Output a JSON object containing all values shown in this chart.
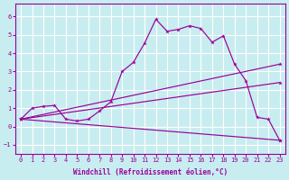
{
  "xlabel": "Windchill (Refroidissement éolien,°C)",
  "bg_color": "#c8edf0",
  "grid_color": "#ffffff",
  "line_color": "#990099",
  "xlim": [
    -0.5,
    23.5
  ],
  "ylim": [
    -1.5,
    6.7
  ],
  "xticks": [
    0,
    1,
    2,
    3,
    4,
    5,
    6,
    7,
    8,
    9,
    10,
    11,
    12,
    13,
    14,
    15,
    16,
    17,
    18,
    19,
    20,
    21,
    22,
    23
  ],
  "yticks": [
    -1,
    0,
    1,
    2,
    3,
    4,
    5,
    6
  ],
  "line1_x": [
    0,
    1,
    2,
    3,
    4,
    5,
    6,
    7,
    8,
    9,
    10,
    11,
    12,
    13,
    14,
    15,
    16,
    17,
    18,
    19,
    20,
    21,
    22,
    23
  ],
  "line1_y": [
    0.4,
    1.0,
    1.1,
    1.15,
    0.4,
    0.3,
    0.4,
    0.85,
    1.35,
    3.0,
    3.5,
    4.55,
    5.85,
    5.2,
    5.3,
    5.5,
    5.35,
    4.6,
    4.95,
    3.4,
    2.5,
    0.5,
    0.4,
    -0.75
  ],
  "line3_x": [
    0,
    23
  ],
  "line3_y": [
    0.4,
    3.4
  ],
  "line4_x": [
    0,
    23
  ],
  "line4_y": [
    0.4,
    2.4
  ],
  "line5_x": [
    0,
    23
  ],
  "line5_y": [
    0.4,
    -0.75
  ]
}
